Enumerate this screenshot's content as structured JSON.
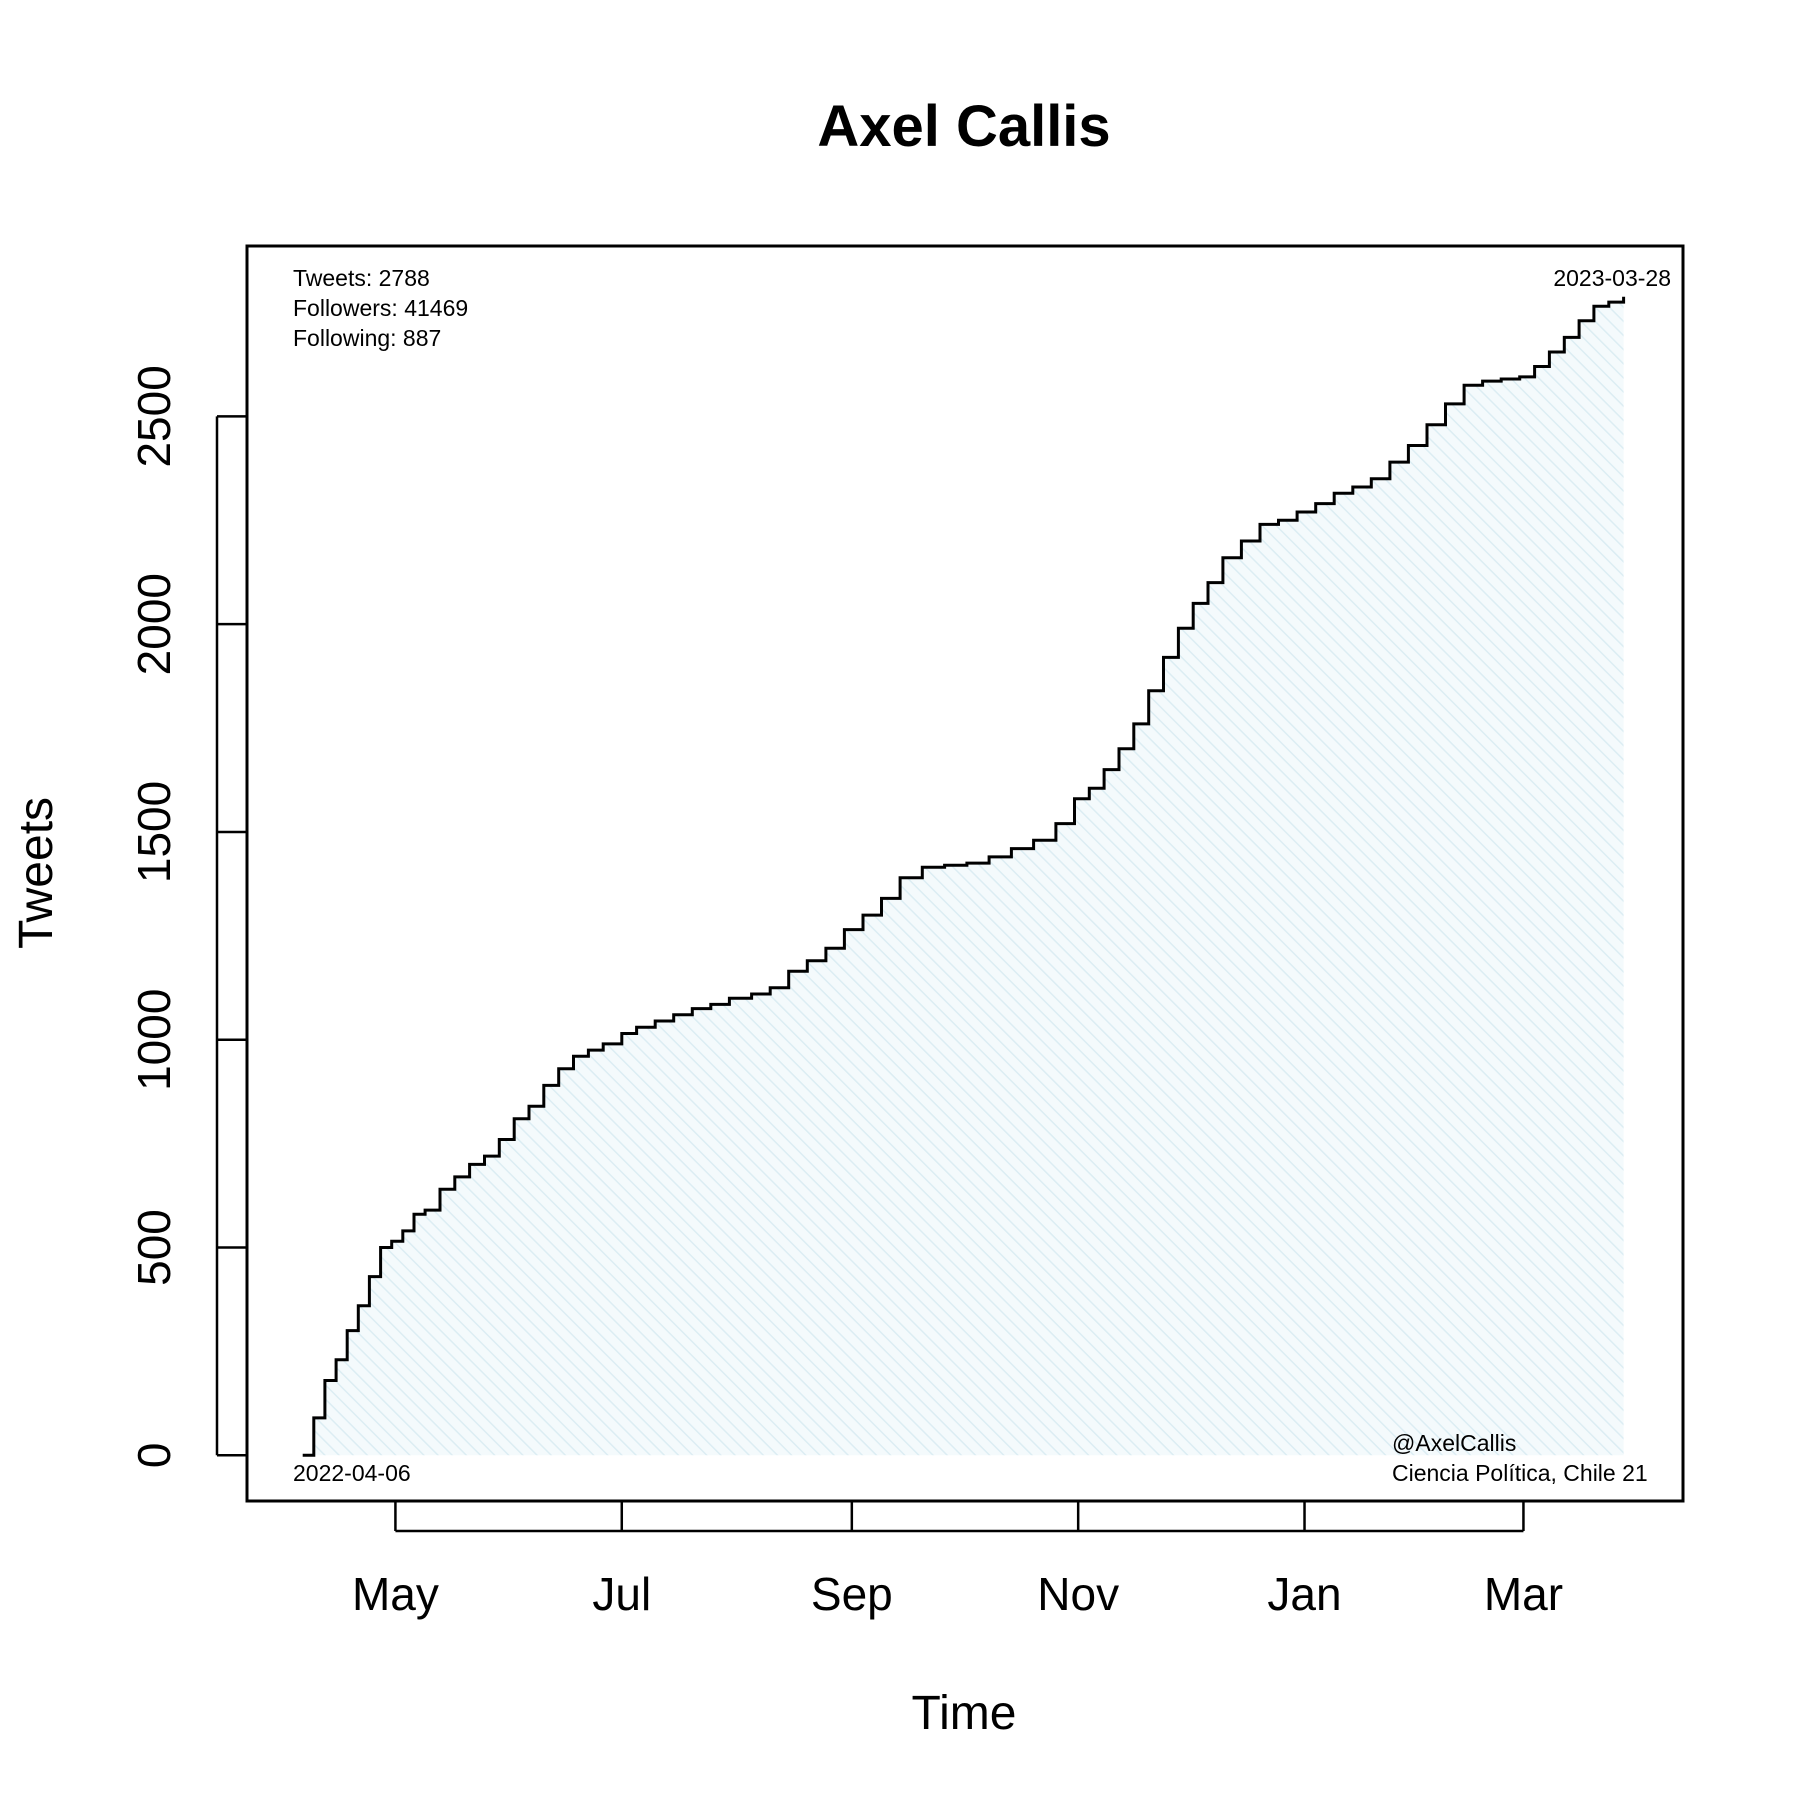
{
  "chart_data": {
    "type": "line",
    "title": "Axel Callis",
    "xlabel": "Time",
    "ylabel": "Tweets",
    "x_tick_labels": [
      {
        "date": "2022-05-01",
        "label": "May"
      },
      {
        "date": "2022-07-01",
        "label": "Jul"
      },
      {
        "date": "2022-09-01",
        "label": "Sep"
      },
      {
        "date": "2022-11-01",
        "label": "Nov"
      },
      {
        "date": "2023-01-01",
        "label": "Jan"
      },
      {
        "date": "2023-03-01",
        "label": "Mar"
      }
    ],
    "y_ticks": [
      0,
      500,
      1000,
      1500,
      2000,
      2500
    ],
    "xlim": [
      "2022-03-22",
      "2023-04-13"
    ],
    "ylim": [
      -110,
      2910
    ],
    "grid": false,
    "fill_color": "#e3f2f6",
    "line_color": "#000000",
    "annotations": {
      "tweets": "Tweets: 2788",
      "followers": "Followers: 41469",
      "following": "Following: 887",
      "start_date": "2022-04-06",
      "end_date": "2023-03-28",
      "handle": "@AxelCallis",
      "affiliation": "Ciencia Política, Chile 21"
    },
    "series": [
      {
        "x": [
          "2022-04-06",
          "2022-04-09",
          "2022-04-12",
          "2022-04-15",
          "2022-04-18",
          "2022-04-21",
          "2022-04-24",
          "2022-04-27",
          "2022-04-30",
          "2022-05-03",
          "2022-05-06",
          "2022-05-09",
          "2022-05-13",
          "2022-05-17",
          "2022-05-21",
          "2022-05-25",
          "2022-05-29",
          "2022-06-02",
          "2022-06-06",
          "2022-06-10",
          "2022-06-14",
          "2022-06-18",
          "2022-06-22",
          "2022-06-26",
          "2022-07-01",
          "2022-07-05",
          "2022-07-10",
          "2022-07-15",
          "2022-07-20",
          "2022-07-25",
          "2022-07-30",
          "2022-08-05",
          "2022-08-10",
          "2022-08-15",
          "2022-08-20",
          "2022-08-25",
          "2022-08-30",
          "2022-09-04",
          "2022-09-09",
          "2022-09-14",
          "2022-09-20",
          "2022-09-26",
          "2022-10-02",
          "2022-10-08",
          "2022-10-14",
          "2022-10-20",
          "2022-10-26",
          "2022-10-31",
          "2022-11-04",
          "2022-11-08",
          "2022-11-12",
          "2022-11-16",
          "2022-11-20",
          "2022-11-24",
          "2022-11-28",
          "2022-12-02",
          "2022-12-06",
          "2022-12-10",
          "2022-12-15",
          "2022-12-20",
          "2022-12-25",
          "2022-12-30",
          "2023-01-04",
          "2023-01-09",
          "2023-01-14",
          "2023-01-19",
          "2023-01-24",
          "2023-01-29",
          "2023-02-03",
          "2023-02-08",
          "2023-02-13",
          "2023-02-18",
          "2023-02-23",
          "2023-02-28",
          "2023-03-04",
          "2023-03-08",
          "2023-03-12",
          "2023-03-16",
          "2023-03-20",
          "2023-03-24",
          "2023-03-28"
        ],
        "y": [
          0,
          90,
          180,
          230,
          300,
          360,
          430,
          500,
          515,
          540,
          580,
          590,
          640,
          670,
          700,
          720,
          760,
          810,
          840,
          890,
          930,
          960,
          975,
          990,
          1015,
          1030,
          1045,
          1060,
          1075,
          1085,
          1100,
          1110,
          1125,
          1165,
          1190,
          1220,
          1265,
          1300,
          1340,
          1390,
          1415,
          1420,
          1425,
          1440,
          1460,
          1480,
          1520,
          1580,
          1605,
          1650,
          1700,
          1760,
          1840,
          1920,
          1990,
          2050,
          2100,
          2160,
          2200,
          2240,
          2250,
          2270,
          2290,
          2315,
          2330,
          2350,
          2390,
          2430,
          2480,
          2530,
          2575,
          2585,
          2590,
          2595,
          2620,
          2655,
          2690,
          2730,
          2765,
          2775,
          2788
        ]
      }
    ]
  }
}
